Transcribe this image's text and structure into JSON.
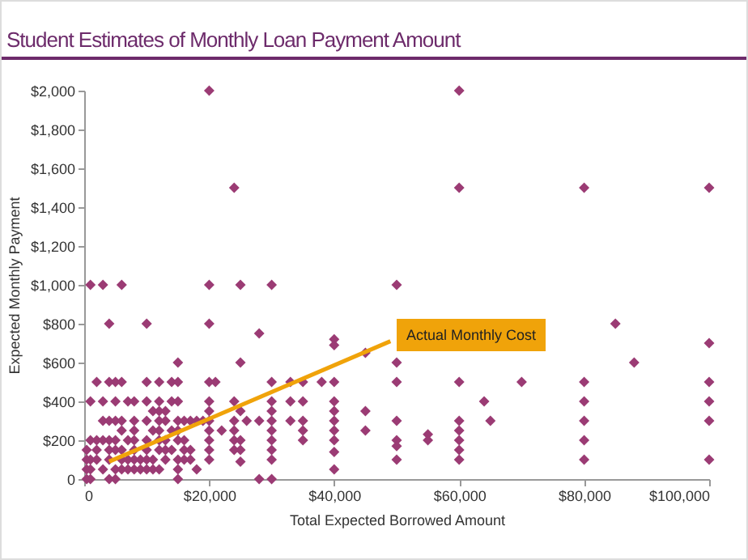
{
  "chart_data": {
    "type": "scatter",
    "title": "Student Estimates of Monthly Loan Payment Amount",
    "xlabel": "Total Expected Borrowed Amount",
    "ylabel": "Expected Monthly Payment",
    "xlim": [
      0,
      100000
    ],
    "ylim": [
      0,
      2000
    ],
    "xticks": [
      0,
      {
        "value": 20000,
        "label": "$20,000"
      },
      {
        "value": 40000,
        "label": "$40,000"
      },
      {
        "value": 60000,
        "label": "$60,000"
      },
      {
        "value": 80000,
        "label": "$80,000"
      },
      {
        "value": 100000,
        "label": "$100,000"
      }
    ],
    "yticks": [
      0,
      {
        "value": 200,
        "label": "$200"
      },
      {
        "value": 400,
        "label": "$400"
      },
      {
        "value": 600,
        "label": "$600"
      },
      {
        "value": 800,
        "label": "$800"
      },
      {
        "value": 1000,
        "label": "$1,000"
      },
      {
        "value": 1200,
        "label": "$1,200"
      },
      {
        "value": 1400,
        "label": "$1,400"
      },
      {
        "value": 1600,
        "label": "$1,600"
      },
      {
        "value": 1800,
        "label": "$1,800"
      },
      {
        "value": 2000,
        "label": "$2,000"
      }
    ],
    "series": [
      {
        "color": "#9b3b74",
        "marker": "diamond",
        "x": [
          20000,
          60000,
          24000,
          60000,
          80000,
          100000,
          1000,
          3000,
          6000,
          20000,
          25000,
          30000,
          50000,
          4000,
          10000,
          20000,
          28000,
          85000,
          40000,
          40000,
          45000,
          100000,
          15000,
          25000,
          50000,
          88000,
          2000,
          4000,
          5000,
          6000,
          10000,
          12000,
          14000,
          15000,
          20000,
          21000,
          30000,
          33000,
          35000,
          38000,
          40000,
          50000,
          60000,
          70000,
          80000,
          100000,
          1000,
          3000,
          5000,
          7000,
          8000,
          10000,
          12000,
          14000,
          15000,
          20000,
          24000,
          30000,
          33000,
          35000,
          40000,
          64000,
          80000,
          100000,
          11000,
          12000,
          13000,
          20000,
          25000,
          30000,
          40000,
          45000,
          3000,
          4000,
          5000,
          6000,
          8000,
          10000,
          12000,
          13000,
          15000,
          16000,
          17000,
          18000,
          19000,
          20000,
          24000,
          26000,
          28000,
          30000,
          33000,
          35000,
          40000,
          50000,
          60000,
          65000,
          80000,
          100000,
          6000,
          8000,
          11000,
          12000,
          14000,
          15000,
          20000,
          22000,
          24000,
          30000,
          35000,
          40000,
          45000,
          60000,
          1000,
          2000,
          3000,
          4000,
          5000,
          7000,
          8000,
          10000,
          12000,
          13000,
          15000,
          16000,
          20000,
          24000,
          25000,
          30000,
          35000,
          40000,
          50000,
          55000,
          55000,
          60000,
          80000,
          400,
          2000,
          4000,
          5000,
          6000,
          8000,
          10000,
          12000,
          13000,
          14000,
          16000,
          17000,
          20000,
          24000,
          25000,
          30000,
          50000,
          60000,
          400,
          1000,
          2000,
          4000,
          6000,
          7000,
          8000,
          9000,
          10000,
          11000,
          13000,
          15000,
          16000,
          17000,
          20000,
          25000,
          30000,
          40000,
          50000,
          60000,
          80000,
          100000,
          400,
          1000,
          3000,
          5000,
          6000,
          7000,
          8000,
          9000,
          10000,
          11000,
          12000,
          15000,
          18000,
          40000,
          400,
          1000,
          4000,
          5000,
          15000,
          28000,
          30000
        ],
        "values": [
          2000,
          2000,
          1500,
          1500,
          1500,
          1500,
          1000,
          1000,
          1000,
          1000,
          1000,
          1000,
          1000,
          800,
          800,
          800,
          750,
          800,
          720,
          690,
          650,
          700,
          600,
          600,
          600,
          600,
          500,
          500,
          500,
          500,
          500,
          500,
          500,
          500,
          500,
          500,
          500,
          500,
          500,
          500,
          500,
          500,
          500,
          500,
          500,
          500,
          400,
          400,
          400,
          400,
          400,
          400,
          400,
          400,
          400,
          400,
          400,
          400,
          400,
          400,
          400,
          400,
          400,
          400,
          350,
          350,
          350,
          350,
          350,
          350,
          350,
          350,
          300,
          300,
          300,
          300,
          300,
          300,
          300,
          300,
          300,
          300,
          300,
          300,
          300,
          300,
          300,
          300,
          300,
          300,
          300,
          300,
          300,
          300,
          300,
          300,
          300,
          300,
          250,
          250,
          250,
          250,
          250,
          250,
          250,
          250,
          250,
          250,
          250,
          250,
          250,
          250,
          200,
          200,
          200,
          200,
          200,
          200,
          200,
          200,
          200,
          200,
          200,
          200,
          200,
          200,
          200,
          200,
          200,
          200,
          200,
          230,
          200,
          200,
          200,
          150,
          150,
          150,
          150,
          150,
          150,
          150,
          150,
          150,
          150,
          150,
          150,
          150,
          150,
          150,
          150,
          170,
          150,
          100,
          100,
          100,
          100,
          100,
          100,
          100,
          100,
          100,
          100,
          100,
          100,
          100,
          100,
          100,
          90,
          100,
          140,
          100,
          100,
          100,
          100,
          50,
          50,
          50,
          50,
          50,
          50,
          50,
          50,
          50,
          50,
          50,
          50,
          50,
          50,
          0,
          0,
          0,
          0,
          0,
          0,
          0
        ]
      },
      {
        "type": "line",
        "color": "#f0a30a",
        "line_style": "solid",
        "x": [
          4000,
          49000
        ],
        "values": [
          90,
          710
        ]
      }
    ],
    "annotations": [
      "Actual Monthly Cost"
    ]
  }
}
